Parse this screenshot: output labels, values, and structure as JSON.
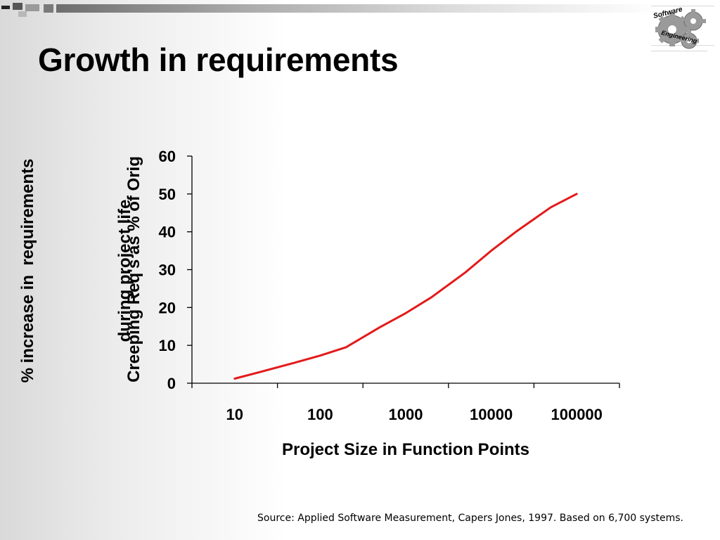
{
  "slide": {
    "title": "Growth in requirements",
    "side_label_lines": [
      "% increase in  requirements",
      "during project life"
    ],
    "source": "Source: Applied Software Measurement, Capers Jones, 1997. Based on 6,700 systems.",
    "logo_top": "Software",
    "logo_bottom": "Engineering",
    "logo_icon": "gears-icon"
  },
  "chart_data": {
    "type": "line",
    "x_scale": "log",
    "xlabel": "Project Size in Function Points",
    "ylabel": "Creeping Req's as % of Orig",
    "x_ticks": [
      "10",
      "100",
      "1000",
      "10000",
      "100000"
    ],
    "y_ticks": [
      "0",
      "10",
      "20",
      "30",
      "40",
      "50",
      "60"
    ],
    "ylim": [
      0,
      60
    ],
    "grid": false,
    "line_color": "#e31a1a",
    "series": [
      {
        "x": [
          10,
          20,
          50,
          100,
          200,
          500,
          1000,
          2000,
          5000,
          10000,
          20000,
          50000,
          100000
        ],
        "y": [
          1.2,
          3.0,
          5.4,
          7.3,
          9.5,
          14.8,
          18.5,
          22.7,
          29.3,
          35.0,
          40.2,
          46.5,
          50.0
        ]
      }
    ]
  }
}
